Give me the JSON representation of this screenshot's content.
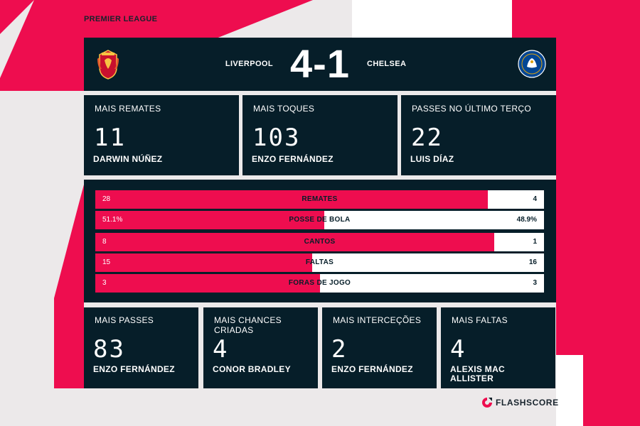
{
  "competition": "PREMIER LEAGUE",
  "match": {
    "home_team": "LIVERPOOL",
    "away_team": "CHELSEA",
    "score": "4-1"
  },
  "top_cards": [
    {
      "title": "MAIS REMATES",
      "value": "11",
      "player": "DARWIN NÚÑEZ"
    },
    {
      "title": "MAIS TOQUES",
      "value": "103",
      "player": "ENZO FERNÁNDEZ"
    },
    {
      "title": "PASSES NO ÚLTIMO TERÇO",
      "value": "22",
      "player": "LUIS DÍAZ"
    }
  ],
  "stats": [
    {
      "label": "REMATES",
      "home": "28",
      "away": "4",
      "home_share": 0.875
    },
    {
      "label": "POSSE DE BOLA",
      "home": "51.1%",
      "away": "48.9%",
      "home_share": 0.511
    },
    {
      "label": "CANTOS",
      "home": "8",
      "away": "1",
      "home_share": 0.889
    },
    {
      "label": "FALTAS",
      "home": "15",
      "away": "16",
      "home_share": 0.484
    },
    {
      "label": "FORAS DE JOGO",
      "home": "3",
      "away": "3",
      "home_share": 0.5
    }
  ],
  "bottom_cards": [
    {
      "title": "MAIS PASSES",
      "value": "83",
      "player": "ENZO FERNÁNDEZ"
    },
    {
      "title": "MAIS CHANCES CRIADAS",
      "value": "4",
      "player": "CONOR BRADLEY"
    },
    {
      "title": "MAIS INTERCEÇÕES",
      "value": "2",
      "player": "ENZO FERNÁNDEZ"
    },
    {
      "title": "MAIS FALTAS",
      "value": "4",
      "player": "ALEXIS MAC ALLISTER"
    }
  ],
  "brand": {
    "name": "FLASHSCORE"
  },
  "colors": {
    "accent": "#ee0d4f",
    "panel": "#061e29",
    "background": "#ece9ea"
  }
}
